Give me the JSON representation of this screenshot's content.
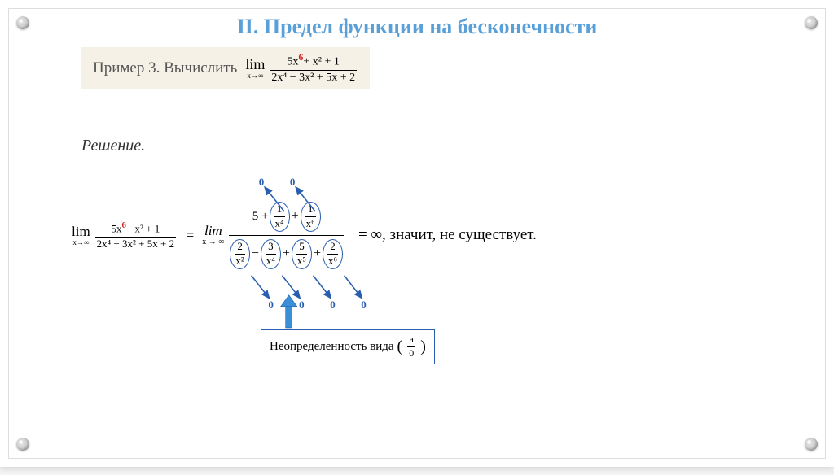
{
  "title": "II. Предел функции на бесконечности",
  "example": {
    "label": "Пример 3. Вычислить",
    "lim_text": "lim",
    "lim_sub": "x→∞",
    "numerator_prefix": "5x",
    "red_exp": "6",
    "numerator_suffix": "+ x² + 1",
    "denominator": "2x⁴ − 3x² + 5x + 2"
  },
  "solution_label": "Решение.",
  "step1": {
    "lim_text": "lim",
    "lim_sub": "x→∞",
    "numerator_prefix": "5x",
    "red_exp": "6",
    "numerator_suffix": "+ x² + 1",
    "denominator": "2x⁴ − 3x² + 5x + 2"
  },
  "eq": "=",
  "step2": {
    "lim_text": "lim",
    "lim_sub": "x → ∞",
    "top_leading": "5 +",
    "top_terms": [
      {
        "num": "1",
        "den": "x⁴"
      },
      {
        "num": "1",
        "den": "x⁶"
      }
    ],
    "top_ops": [
      "+"
    ],
    "bot_terms": [
      {
        "num": "2",
        "den": "x²"
      },
      {
        "num": "3",
        "den": "x⁴"
      },
      {
        "num": "5",
        "den": "x⁵"
      },
      {
        "num": "2",
        "den": "x⁶"
      }
    ],
    "bot_ops": [
      "−",
      "+",
      "+"
    ],
    "arrow_labels_top": [
      "0",
      "0"
    ],
    "arrow_labels_bot": [
      "0",
      "0",
      "0",
      "0"
    ]
  },
  "conclusion": "= ∞,  значит, не существует.",
  "indet": {
    "text": "Неопределенность вида",
    "frac_num": "a",
    "frac_den": "0"
  },
  "colors": {
    "title": "#5aa0d8",
    "accent_red": "#d62020",
    "accent_blue": "#2a5fb0",
    "box_bg": "#f5f1e6",
    "arrow_fill": "#3b8fd6"
  }
}
